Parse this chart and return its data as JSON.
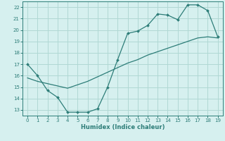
{
  "xlabel": "Humidex (Indice chaleur)",
  "line1_x": [
    0,
    1,
    2,
    3,
    4,
    5,
    6,
    7,
    8,
    9,
    10,
    11,
    12,
    13,
    14,
    15,
    16,
    17,
    18,
    19
  ],
  "line1_y": [
    17.0,
    16.0,
    14.7,
    14.1,
    12.8,
    12.8,
    12.8,
    13.1,
    15.0,
    17.4,
    19.7,
    19.9,
    20.4,
    21.4,
    21.3,
    20.9,
    22.2,
    22.2,
    21.7,
    19.4
  ],
  "line2_x": [
    0,
    1,
    2,
    3,
    4,
    5,
    6,
    7,
    8,
    9,
    10,
    11,
    12,
    13,
    14,
    15,
    16,
    17,
    18,
    19
  ],
  "line2_y": [
    15.8,
    15.5,
    15.3,
    15.1,
    14.9,
    15.2,
    15.5,
    15.9,
    16.3,
    16.7,
    17.1,
    17.4,
    17.8,
    18.1,
    18.4,
    18.7,
    19.0,
    19.3,
    19.4,
    19.3
  ],
  "line_color": "#2d7d78",
  "bg_color": "#d6f0ef",
  "grid_color": "#b0d8d4",
  "xlim": [
    -0.5,
    19.5
  ],
  "ylim": [
    12.5,
    22.5
  ],
  "xticks": [
    0,
    1,
    2,
    3,
    4,
    5,
    6,
    7,
    8,
    9,
    10,
    11,
    12,
    13,
    14,
    15,
    16,
    17,
    18,
    19
  ],
  "yticks": [
    13,
    14,
    15,
    16,
    17,
    18,
    19,
    20,
    21,
    22
  ],
  "xlabel_fontsize": 6,
  "tick_fontsize": 5
}
